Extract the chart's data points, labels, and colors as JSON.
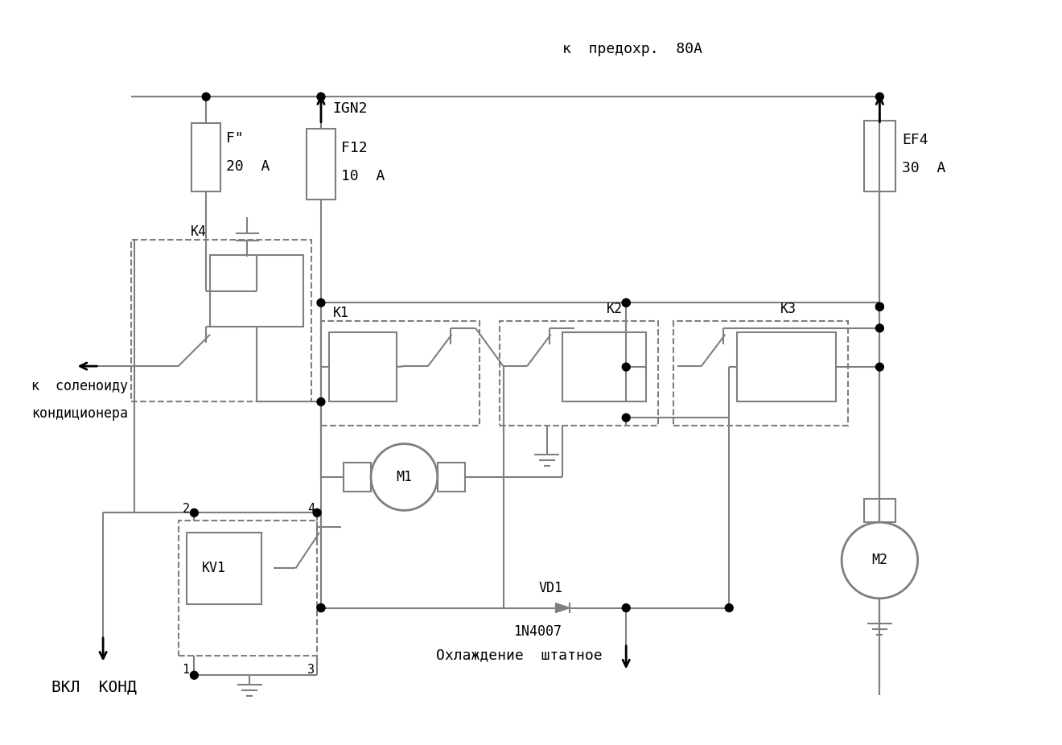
{
  "bg_color": "#ffffff",
  "lc": "#7f7f7f",
  "lw": 1.5,
  "figsize": [
    13.2,
    9.26
  ],
  "dpi": 100,
  "texts": {
    "top_label": "к  предохр.  80А",
    "EF4_line1": "EF4",
    "EF4_line2": "30  А",
    "F_prime_line1": "F\"",
    "F_prime_line2": "20  А",
    "K4": "K4",
    "IGN2": "IGN2",
    "F12_line1": "F12",
    "F12_line2": "10  А",
    "K1": "K1",
    "K2": "K2",
    "K3": "K3",
    "M1": "M1",
    "M2": "M2",
    "VD1": "VD1",
    "diode_part": "1N4007",
    "KV1": "KV1",
    "pin2": "2",
    "pin4": "4",
    "pin1": "1",
    "pin3": "3",
    "solenoid1": "к  соленоиду",
    "solenoid2": "кондиционера",
    "vkl_kond": "ВКЛ  КОНД",
    "cooling": "Охлаждение  штатное"
  }
}
